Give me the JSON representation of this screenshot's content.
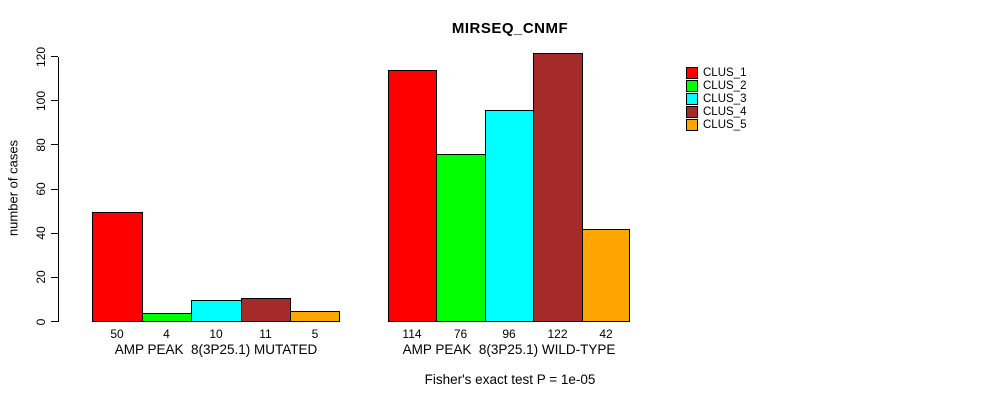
{
  "title": "MIRSEQ_CNMF",
  "chart_data": {
    "type": "bar",
    "title": "MIRSEQ_CNMF",
    "xlabel": "",
    "ylabel": "number of cases",
    "ylim": [
      0,
      120
    ],
    "yticks": [
      0,
      20,
      40,
      60,
      80,
      100,
      120
    ],
    "grid": false,
    "legend_position": "right",
    "categories": [
      "AMP PEAK  8(3P25.1) MUTATED",
      "AMP PEAK  8(3P25.1) WILD-TYPE"
    ],
    "series": [
      {
        "name": "CLUS_1",
        "color": "#FF0000",
        "values": [
          50,
          114
        ]
      },
      {
        "name": "CLUS_2",
        "color": "#00FF00",
        "values": [
          4,
          76
        ]
      },
      {
        "name": "CLUS_3",
        "color": "#00FFFF",
        "values": [
          10,
          96
        ]
      },
      {
        "name": "CLUS_4",
        "color": "#A52A2A",
        "values": [
          11,
          122
        ]
      },
      {
        "name": "CLUS_5",
        "color": "#FFA500",
        "values": [
          5,
          42
        ]
      }
    ],
    "bar_value_labels_shown": true,
    "annotation": "Fisher's exact test P = 1e-05"
  },
  "colors": {
    "background": "#FFFFFF",
    "axis": "#000000",
    "text": "#000000"
  }
}
